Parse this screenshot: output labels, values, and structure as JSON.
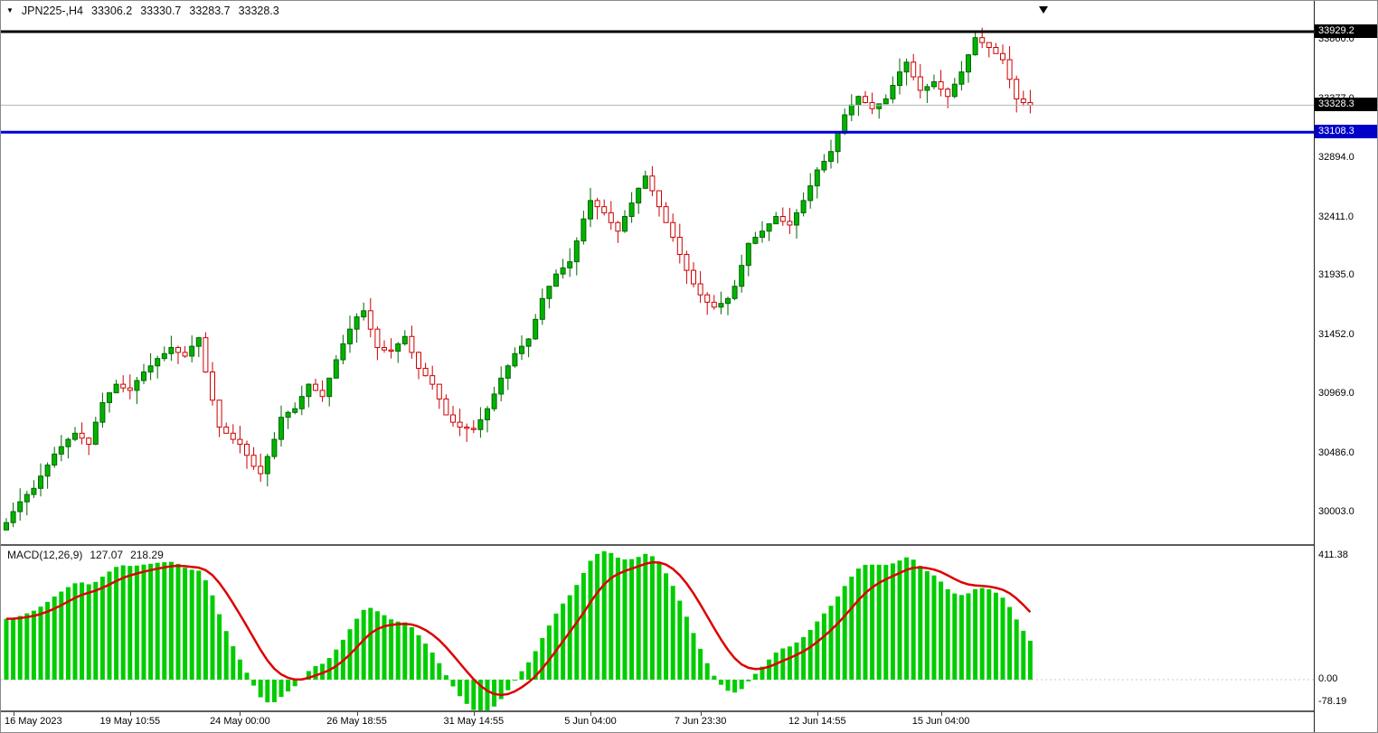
{
  "header": {
    "marker": "▼",
    "title": "JPN225-,H4",
    "open": "33306.2",
    "high": "33330.7",
    "low": "33283.7",
    "close": "33328.3"
  },
  "chart_data": {
    "type": "candlestick",
    "symbol": "JPN225-",
    "timeframe": "H4",
    "title": "JPN225-,H4",
    "ylim": [
      29850,
      34020
    ],
    "y_ticks": [
      33860.0,
      33377.0,
      32894.0,
      32411.0,
      31935.0,
      31452.0,
      30969.0,
      30486.0,
      30003.0
    ],
    "x_labels": [
      {
        "text": "16 May 2023",
        "i": 1
      },
      {
        "text": "19 May 10:55",
        "i": 18
      },
      {
        "text": "24 May 00:00",
        "i": 34
      },
      {
        "text": "26 May 18:55",
        "i": 51
      },
      {
        "text": "31 May 14:55",
        "i": 68
      },
      {
        "text": "5 Jun 04:00",
        "i": 85
      },
      {
        "text": "7 Jun 23:30",
        "i": 101
      },
      {
        "text": "12 Jun 14:55",
        "i": 118
      },
      {
        "text": "15 Jun 04:00",
        "i": 136
      }
    ],
    "closes": [
      29920,
      30010,
      30090,
      30150,
      30200,
      30300,
      30390,
      30480,
      30540,
      30600,
      30650,
      30610,
      30560,
      30740,
      30900,
      30980,
      31050,
      31020,
      31000,
      31080,
      31150,
      31200,
      31260,
      31300,
      31350,
      31310,
      31280,
      31360,
      31430,
      31150,
      30920,
      30700,
      30650,
      30600,
      30560,
      30470,
      30380,
      30320,
      30460,
      30600,
      30780,
      30820,
      30850,
      30950,
      31050,
      31000,
      30950,
      31100,
      31250,
      31380,
      31500,
      31600,
      31650,
      31500,
      31350,
      31330,
      31320,
      31380,
      31440,
      31310,
      31180,
      31120,
      31050,
      30930,
      30800,
      30740,
      30700,
      30690,
      30680,
      30760,
      30850,
      30970,
      31100,
      31200,
      31300,
      31360,
      31420,
      31580,
      31750,
      31850,
      31950,
      32000,
      32050,
      32220,
      32400,
      32550,
      32500,
      32450,
      32370,
      32300,
      32420,
      32530,
      32650,
      32750,
      32630,
      32500,
      32370,
      32250,
      32110,
      31980,
      31870,
      31780,
      31720,
      31680,
      31710,
      31750,
      31850,
      32020,
      32200,
      32250,
      32300,
      32360,
      32420,
      32380,
      32350,
      32450,
      32550,
      32670,
      32800,
      32870,
      32950,
      33100,
      33250,
      33330,
      33400,
      33350,
      33300,
      33340,
      33380,
      33490,
      33600,
      33680,
      33560,
      33450,
      33480,
      33520,
      33460,
      33400,
      33500,
      33600,
      33740,
      33880,
      33840,
      33800,
      33750,
      33700,
      33540,
      33380,
      33350,
      33328.3
    ],
    "last_ohlc": {
      "open": 33306.2,
      "high": 33330.7,
      "low": 33283.7,
      "close": 33328.3
    },
    "levels": [
      {
        "name": "high-line",
        "price": 33929.2,
        "color": "#000000",
        "width": 3,
        "badge_bg": "#000000"
      },
      {
        "name": "current-price-line",
        "price": 33328.3,
        "color": "#b4b4b4",
        "width": 1,
        "badge_bg": "#000000"
      },
      {
        "name": "support-line",
        "price": 33108.3,
        "color": "#0000d8",
        "width": 3,
        "badge_bg": "#0000c8"
      }
    ],
    "indicator": {
      "type": "macd",
      "label": "MACD(12,26,9)",
      "params": {
        "fast": 12,
        "slow": 26,
        "signal": 9
      },
      "main_display": "127.07",
      "signal_display": "218.29",
      "y_ticks": [
        411.38,
        0.0,
        -78.19
      ],
      "hist_color": "#00cc00",
      "signal_color": "#dd0000"
    },
    "colors": {
      "bull_fill": "#00b400",
      "bull_stroke": "#006600",
      "bear_stroke": "#cc0000",
      "bear_fill": "#ffffff",
      "grid_zero": "#c8c8c8",
      "background": "#ffffff"
    }
  }
}
